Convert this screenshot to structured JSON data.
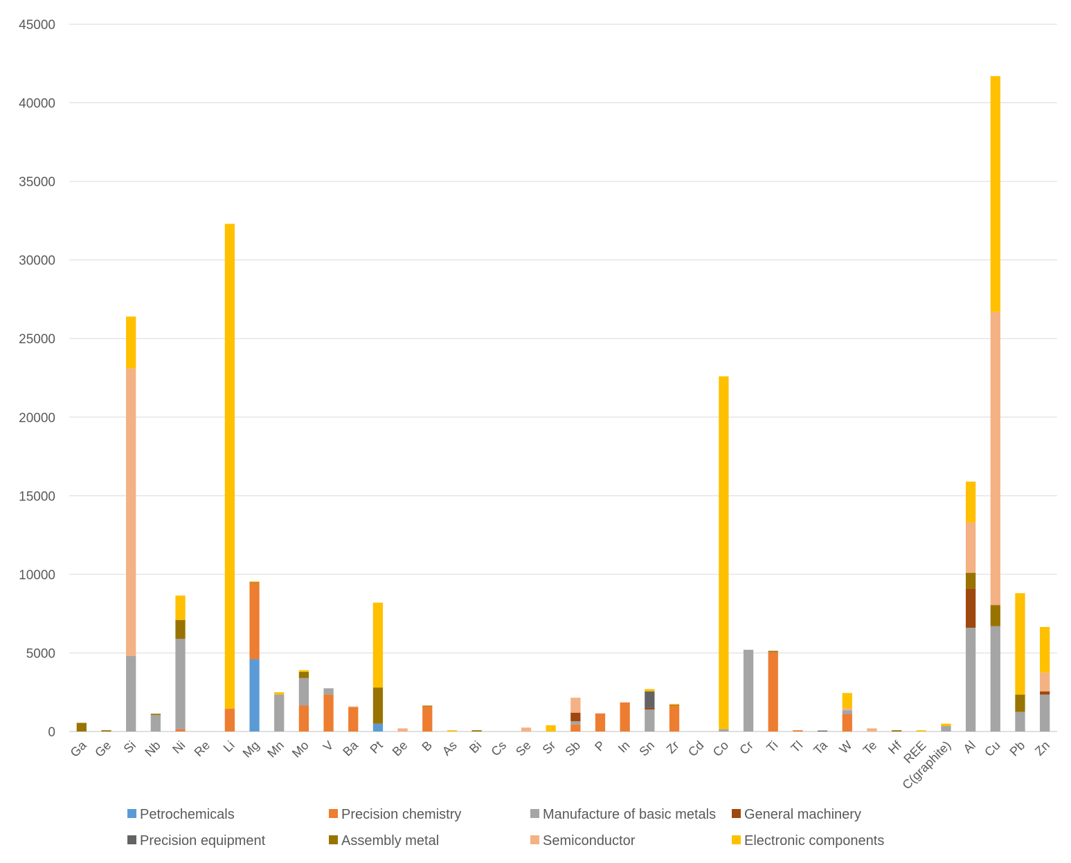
{
  "chart_data": {
    "type": "bar",
    "stacked": true,
    "title": "",
    "xlabel": "",
    "ylabel": "",
    "ylim": [
      0,
      45000
    ],
    "yticks": [
      0,
      5000,
      10000,
      15000,
      20000,
      25000,
      30000,
      35000,
      40000,
      45000
    ],
    "grid": "horizontal",
    "legend_position": "bottom",
    "categories": [
      "Ga",
      "Ge",
      "Si",
      "Nb",
      "Ni",
      "Re",
      "Li",
      "Mg",
      "Mn",
      "Mo",
      "V",
      "Ba",
      "Pt",
      "Be",
      "B",
      "As",
      "Bi",
      "Cs",
      "Se",
      "Sr",
      "Sb",
      "P",
      "In",
      "Sn",
      "Zr",
      "Cd",
      "Co",
      "Cr",
      "Ti",
      "Tl",
      "Ta",
      "W",
      "Te",
      "Hf",
      "REE",
      "C(graphite)",
      "Al",
      "Cu",
      "Pb",
      "Zn"
    ],
    "series": [
      {
        "name": "Petrochemicals",
        "color": "#5B9BD5",
        "values": [
          0,
          0,
          0,
          0,
          0,
          0,
          0,
          4600,
          0,
          0,
          0,
          0,
          500,
          0,
          0,
          0,
          0,
          0,
          0,
          0,
          0,
          0,
          0,
          0,
          0,
          0,
          0,
          0,
          0,
          0,
          0,
          0,
          0,
          0,
          0,
          0,
          0,
          0,
          0,
          0
        ]
      },
      {
        "name": "Precision chemistry",
        "color": "#ED7D31",
        "values": [
          0,
          0,
          0,
          0,
          150,
          0,
          1450,
          4850,
          0,
          1650,
          2350,
          1550,
          0,
          0,
          1600,
          0,
          0,
          0,
          0,
          0,
          450,
          1150,
          1850,
          0,
          1650,
          0,
          0,
          0,
          5050,
          80,
          0,
          1100,
          0,
          0,
          0,
          0,
          0,
          0,
          0,
          0
        ]
      },
      {
        "name": "Manufacture of basic metals",
        "color": "#A5A5A5",
        "values": [
          0,
          0,
          4800,
          1050,
          5750,
          0,
          0,
          0,
          2350,
          1750,
          400,
          0,
          0,
          0,
          0,
          0,
          0,
          0,
          0,
          0,
          200,
          0,
          0,
          1400,
          0,
          0,
          150,
          5200,
          0,
          0,
          0,
          250,
          0,
          0,
          0,
          350,
          6600,
          6700,
          1250,
          2350
        ]
      },
      {
        "name": "General machinery",
        "color": "#9E480E",
        "values": [
          0,
          0,
          0,
          0,
          0,
          0,
          0,
          0,
          0,
          0,
          0,
          0,
          0,
          0,
          0,
          0,
          0,
          0,
          0,
          0,
          550,
          0,
          0,
          100,
          0,
          0,
          0,
          0,
          0,
          0,
          0,
          0,
          0,
          0,
          0,
          0,
          2500,
          0,
          0,
          200
        ]
      },
      {
        "name": "Precision equipment",
        "color": "#636363",
        "values": [
          0,
          0,
          0,
          0,
          0,
          0,
          0,
          0,
          0,
          0,
          0,
          0,
          0,
          0,
          0,
          0,
          0,
          0,
          0,
          0,
          0,
          0,
          0,
          1050,
          0,
          0,
          0,
          0,
          0,
          0,
          60,
          0,
          0,
          0,
          0,
          0,
          0,
          0,
          0,
          0
        ]
      },
      {
        "name": "Assembly metal",
        "color": "#997300",
        "values": [
          550,
          80,
          0,
          80,
          1200,
          0,
          0,
          50,
          0,
          400,
          0,
          0,
          2300,
          0,
          50,
          0,
          80,
          0,
          0,
          0,
          0,
          0,
          0,
          0,
          50,
          0,
          0,
          0,
          80,
          0,
          0,
          0,
          0,
          80,
          0,
          0,
          1000,
          1350,
          1100,
          0
        ]
      },
      {
        "name": "Semiconductor",
        "color": "#F4B183",
        "values": [
          0,
          0,
          18300,
          0,
          0,
          0,
          0,
          0,
          0,
          0,
          0,
          50,
          0,
          200,
          0,
          0,
          0,
          0,
          250,
          0,
          950,
          0,
          0,
          0,
          0,
          0,
          0,
          0,
          0,
          0,
          0,
          150,
          200,
          0,
          0,
          0,
          3200,
          18650,
          0,
          1200
        ]
      },
      {
        "name": "Electronic components",
        "color": "#FFC000",
        "values": [
          0,
          0,
          3300,
          0,
          1550,
          0,
          30850,
          50,
          150,
          100,
          0,
          0,
          5400,
          0,
          0,
          80,
          0,
          0,
          0,
          400,
          0,
          0,
          0,
          150,
          50,
          0,
          22450,
          0,
          0,
          0,
          0,
          950,
          0,
          0,
          80,
          150,
          2600,
          15000,
          6450,
          2900
        ]
      }
    ]
  }
}
